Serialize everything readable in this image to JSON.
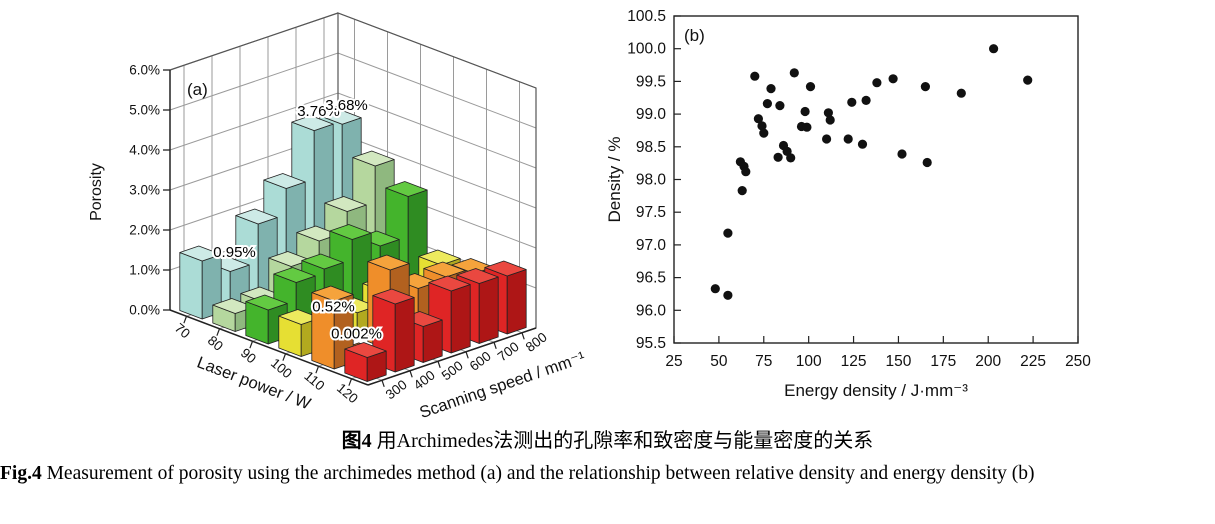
{
  "figure": {
    "caption_zh": {
      "prefix": "图4",
      "text": "用Archimedes法测出的孔隙率和致密度与能量密度的关系"
    },
    "caption_en": {
      "prefix": "Fig.4",
      "text": "Measurement of porosity using the archimedes method (a) and the relationship between relative density and energy density (b)"
    }
  },
  "chart_data": [
    {
      "type": "bar",
      "variant": "bar3d",
      "panel_label": "(a)",
      "zlabel": "Porosity",
      "xlabel": "Laser power / W",
      "ylabel": "Scanning speed / mm⁻¹",
      "z_ticks": [
        "0.0%",
        "1.0%",
        "2.0%",
        "3.0%",
        "4.0%",
        "5.0%",
        "6.0%"
      ],
      "zlim": [
        0,
        6
      ],
      "x_categories": [
        70,
        80,
        90,
        100,
        110,
        120
      ],
      "y_categories": [
        300,
        400,
        500,
        600,
        700,
        800
      ],
      "series": [
        {
          "name": "70 W",
          "colors": {
            "left": "#abdcd6",
            "right": "#7fb2ae",
            "top": "#cdeae6"
          },
          "values": [
            1.45,
            0.95,
            1.9,
            2.55,
            3.76,
            3.68
          ]
        },
        {
          "name": "80 W",
          "colors": {
            "left": "#b5d79e",
            "right": "#8fb87f",
            "top": "#d2e8c0"
          },
          "values": [
            0.45,
            0.5,
            1.15,
            1.55,
            2.05,
            2.95
          ]
        },
        {
          "name": "90 W",
          "colors": {
            "left": "#44b42c",
            "right": "#2f8c22",
            "top": "#63ca42"
          },
          "values": [
            0.85,
            1.3,
            1.4,
            1.9,
            1.5,
            2.5
          ]
        },
        {
          "name": "100 W",
          "colors": {
            "left": "#e6df33",
            "right": "#b2a91f",
            "top": "#edea5e"
          },
          "values": [
            0.8,
            0.52,
            0.62,
            0.9,
            0.7,
            1.1
          ]
        },
        {
          "name": "110 W",
          "colors": {
            "left": "#ef8e2a",
            "right": "#b2611f",
            "top": "#f5a33c"
          },
          "values": [
            1.7,
            0.002,
            2.0,
            1.3,
            1.35,
            1.2
          ]
        },
        {
          "name": "120 W",
          "colors": {
            "left": "#df2525",
            "right": "#ae1616",
            "top": "#ea4840"
          },
          "values": [
            0.6,
            1.7,
            0.9,
            1.55,
            1.5,
            1.45
          ]
        }
      ],
      "annotations": [
        {
          "text": "0.95%",
          "series": 0,
          "index": 1
        },
        {
          "text": "3.76%",
          "series": 0,
          "index": 4
        },
        {
          "text": "3.68%",
          "series": 0,
          "index": 5
        },
        {
          "text": "0.52%",
          "series": 3,
          "index": 1
        },
        {
          "text": "0.002%",
          "series": 4,
          "index": 1
        }
      ]
    },
    {
      "type": "scatter",
      "panel_label": "(b)",
      "xlabel": "Energy density / J·mm⁻³",
      "ylabel": "Density / %",
      "xlim": [
        25,
        250
      ],
      "ylim": [
        95.5,
        100.5
      ],
      "x_ticks": [
        25,
        50,
        75,
        100,
        125,
        150,
        175,
        200,
        225,
        250
      ],
      "y_ticks": [
        95.5,
        96.0,
        96.5,
        97.0,
        97.5,
        98.0,
        98.5,
        99.0,
        99.5,
        100.0,
        100.5
      ],
      "marker_color": "#111111",
      "grid": false,
      "points": [
        [
          48,
          96.33
        ],
        [
          55,
          96.23
        ],
        [
          55,
          97.18
        ],
        [
          62,
          98.27
        ],
        [
          63,
          97.83
        ],
        [
          64,
          98.2
        ],
        [
          65,
          98.12
        ],
        [
          70,
          99.58
        ],
        [
          72,
          98.93
        ],
        [
          74,
          98.82
        ],
        [
          75,
          98.71
        ],
        [
          77,
          99.16
        ],
        [
          79,
          99.39
        ],
        [
          83,
          98.34
        ],
        [
          84,
          99.13
        ],
        [
          86,
          98.52
        ],
        [
          88,
          98.43
        ],
        [
          90,
          98.33
        ],
        [
          92,
          99.63
        ],
        [
          96,
          98.81
        ],
        [
          98,
          99.04
        ],
        [
          99,
          98.8
        ],
        [
          101,
          99.42
        ],
        [
          110,
          98.62
        ],
        [
          111,
          99.02
        ],
        [
          112,
          98.91
        ],
        [
          122,
          98.62
        ],
        [
          124,
          99.18
        ],
        [
          130,
          98.54
        ],
        [
          132,
          99.21
        ],
        [
          138,
          99.48
        ],
        [
          147,
          99.54
        ],
        [
          152,
          98.39
        ],
        [
          165,
          99.42
        ],
        [
          166,
          98.26
        ],
        [
          185,
          99.32
        ],
        [
          203,
          100.0
        ],
        [
          222,
          99.52
        ]
      ]
    }
  ]
}
